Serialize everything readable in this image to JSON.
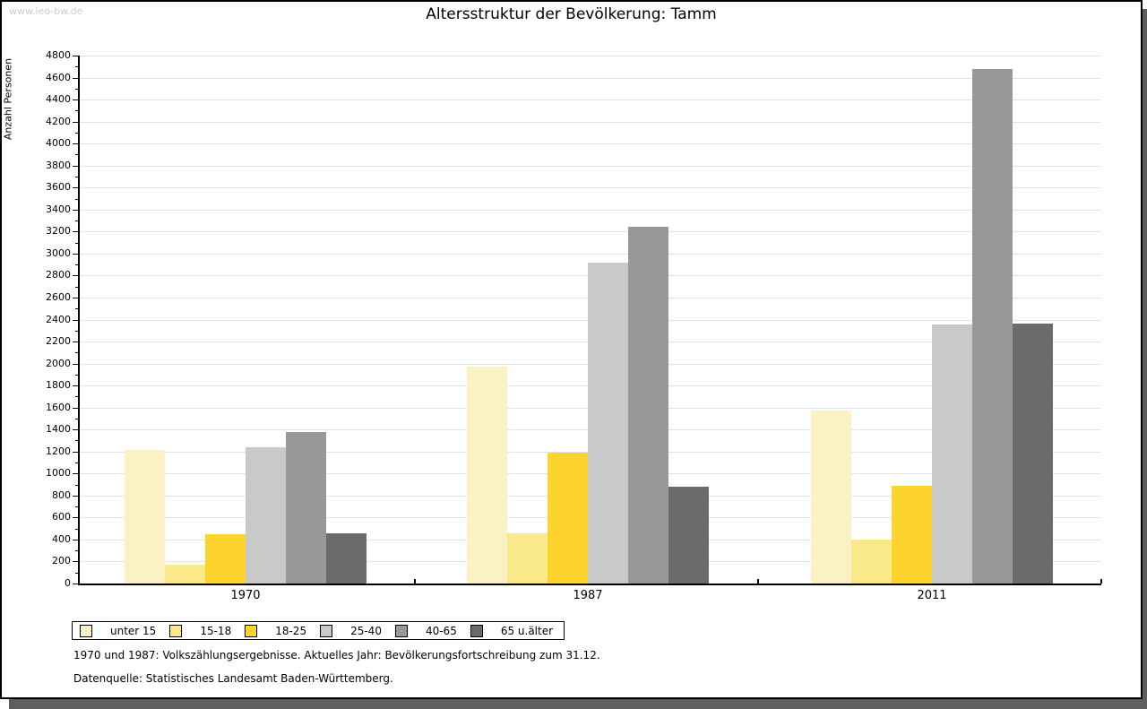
{
  "header": {
    "title": "Altersstruktur der Bevölkerung: Tamm",
    "watermark": "www.leo-bw.de"
  },
  "chart_data": {
    "type": "bar",
    "title": "Altersstruktur der Bevölkerung: Tamm",
    "ylabel": "Anzahl Personen",
    "xlabel": "",
    "categories": [
      "1970",
      "1987",
      "2011"
    ],
    "series": [
      {
        "name": "unter 15",
        "color": "#fbf2c4",
        "values": [
          1215,
          1970,
          1575
        ]
      },
      {
        "name": "15-18",
        "color": "#fae98b",
        "values": [
          170,
          455,
          400
        ]
      },
      {
        "name": "18-25",
        "color": "#fcd42d",
        "values": [
          445,
          1190,
          890
        ]
      },
      {
        "name": "25-40",
        "color": "#c9c9c9",
        "values": [
          1240,
          2920,
          2355
        ]
      },
      {
        "name": "40-65",
        "color": "#989898",
        "values": [
          1380,
          3240,
          4680
        ]
      },
      {
        "name": "65 u.älter",
        "color": "#6b6b6b",
        "values": [
          455,
          880,
          2365
        ]
      }
    ],
    "ylim": [
      0,
      4800
    ],
    "ytick_step": 200,
    "yminor_step": 100,
    "grid": "horizontal",
    "legend_position": "bottom-left"
  },
  "footer": {
    "line1": "1970 und 1987: Volkszählungsergebnisse. Aktuelles Jahr: Bevölkerungsfortschreibung zum 31.12.",
    "line2": "Datenquelle: Statistisches Landesamt Baden-Württemberg."
  }
}
